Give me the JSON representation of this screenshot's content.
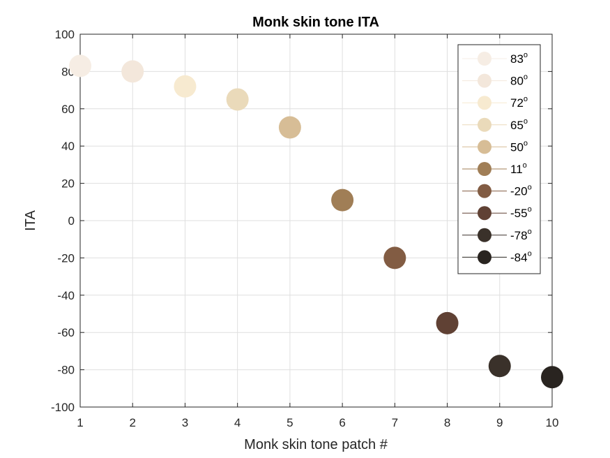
{
  "chart_data": {
    "type": "scatter",
    "title": "Monk skin tone ITA",
    "xlabel": "Monk skin tone patch #",
    "ylabel": "ITA",
    "xlim": [
      1,
      10
    ],
    "ylim": [
      -100,
      100
    ],
    "xticks": [
      1,
      2,
      3,
      4,
      5,
      6,
      7,
      8,
      9,
      10
    ],
    "yticks": [
      -100,
      -80,
      -60,
      -40,
      -20,
      0,
      20,
      40,
      60,
      80,
      100
    ],
    "grid": true,
    "legend_position": "top-right",
    "series": [
      {
        "name": "83",
        "x": 1,
        "y": 83,
        "color": "#f6ede4"
      },
      {
        "name": "80",
        "x": 2,
        "y": 80,
        "color": "#f3e7db"
      },
      {
        "name": "72",
        "x": 3,
        "y": 72,
        "color": "#f7ead0"
      },
      {
        "name": "65",
        "x": 4,
        "y": 65,
        "color": "#eadaba"
      },
      {
        "name": "50",
        "x": 5,
        "y": 50,
        "color": "#d7bd96"
      },
      {
        "name": "11",
        "x": 6,
        "y": 11,
        "color": "#a07e56"
      },
      {
        "name": "-20",
        "x": 7,
        "y": -20,
        "color": "#825c43"
      },
      {
        "name": "-55",
        "x": 8,
        "y": -55,
        "color": "#604134"
      },
      {
        "name": "-78",
        "x": 9,
        "y": -78,
        "color": "#3a312a"
      },
      {
        "name": "-84",
        "x": 10,
        "y": -84,
        "color": "#292420"
      }
    ],
    "legend_suffix": "o"
  }
}
